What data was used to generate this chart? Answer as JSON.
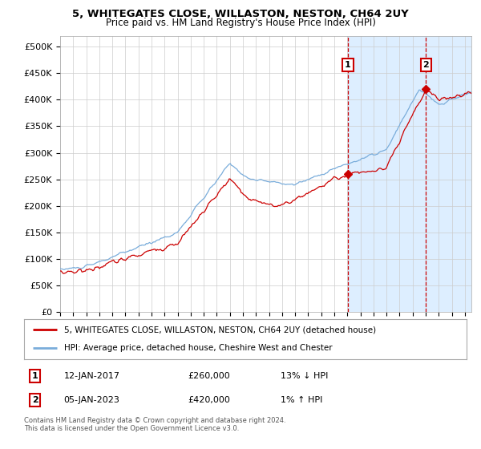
{
  "title_line1": "5, WHITEGATES CLOSE, WILLASTON, NESTON, CH64 2UY",
  "title_line2": "Price paid vs. HM Land Registry's House Price Index (HPI)",
  "xlim_start": 1995.0,
  "xlim_end": 2026.5,
  "ylim": [
    0,
    520000
  ],
  "yticks": [
    0,
    50000,
    100000,
    150000,
    200000,
    250000,
    300000,
    350000,
    400000,
    450000,
    500000
  ],
  "ytick_labels": [
    "£0",
    "£50K",
    "£100K",
    "£150K",
    "£200K",
    "£250K",
    "£300K",
    "£350K",
    "£400K",
    "£450K",
    "£500K"
  ],
  "hpi_color": "#7aaddb",
  "price_color": "#cc0000",
  "marker_color": "#cc0000",
  "grid_color": "#cccccc",
  "plot_bg": "#ffffff",
  "shade_color": "#ddeeff",
  "event1_date_num": 2017.04,
  "event1_price": 260000,
  "event1_label": "12-JAN-2017",
  "event1_amount": "£260,000",
  "event1_hpi": "13% ↓ HPI",
  "event2_date_num": 2023.02,
  "event2_price": 420000,
  "event2_label": "05-JAN-2023",
  "event2_amount": "£420,000",
  "event2_hpi": "1% ↑ HPI",
  "legend_line1": "5, WHITEGATES CLOSE, WILLASTON, NESTON, CH64 2UY (detached house)",
  "legend_line2": "HPI: Average price, detached house, Cheshire West and Chester",
  "footer": "Contains HM Land Registry data © Crown copyright and database right 2024.\nThis data is licensed under the Open Government Licence v3.0."
}
